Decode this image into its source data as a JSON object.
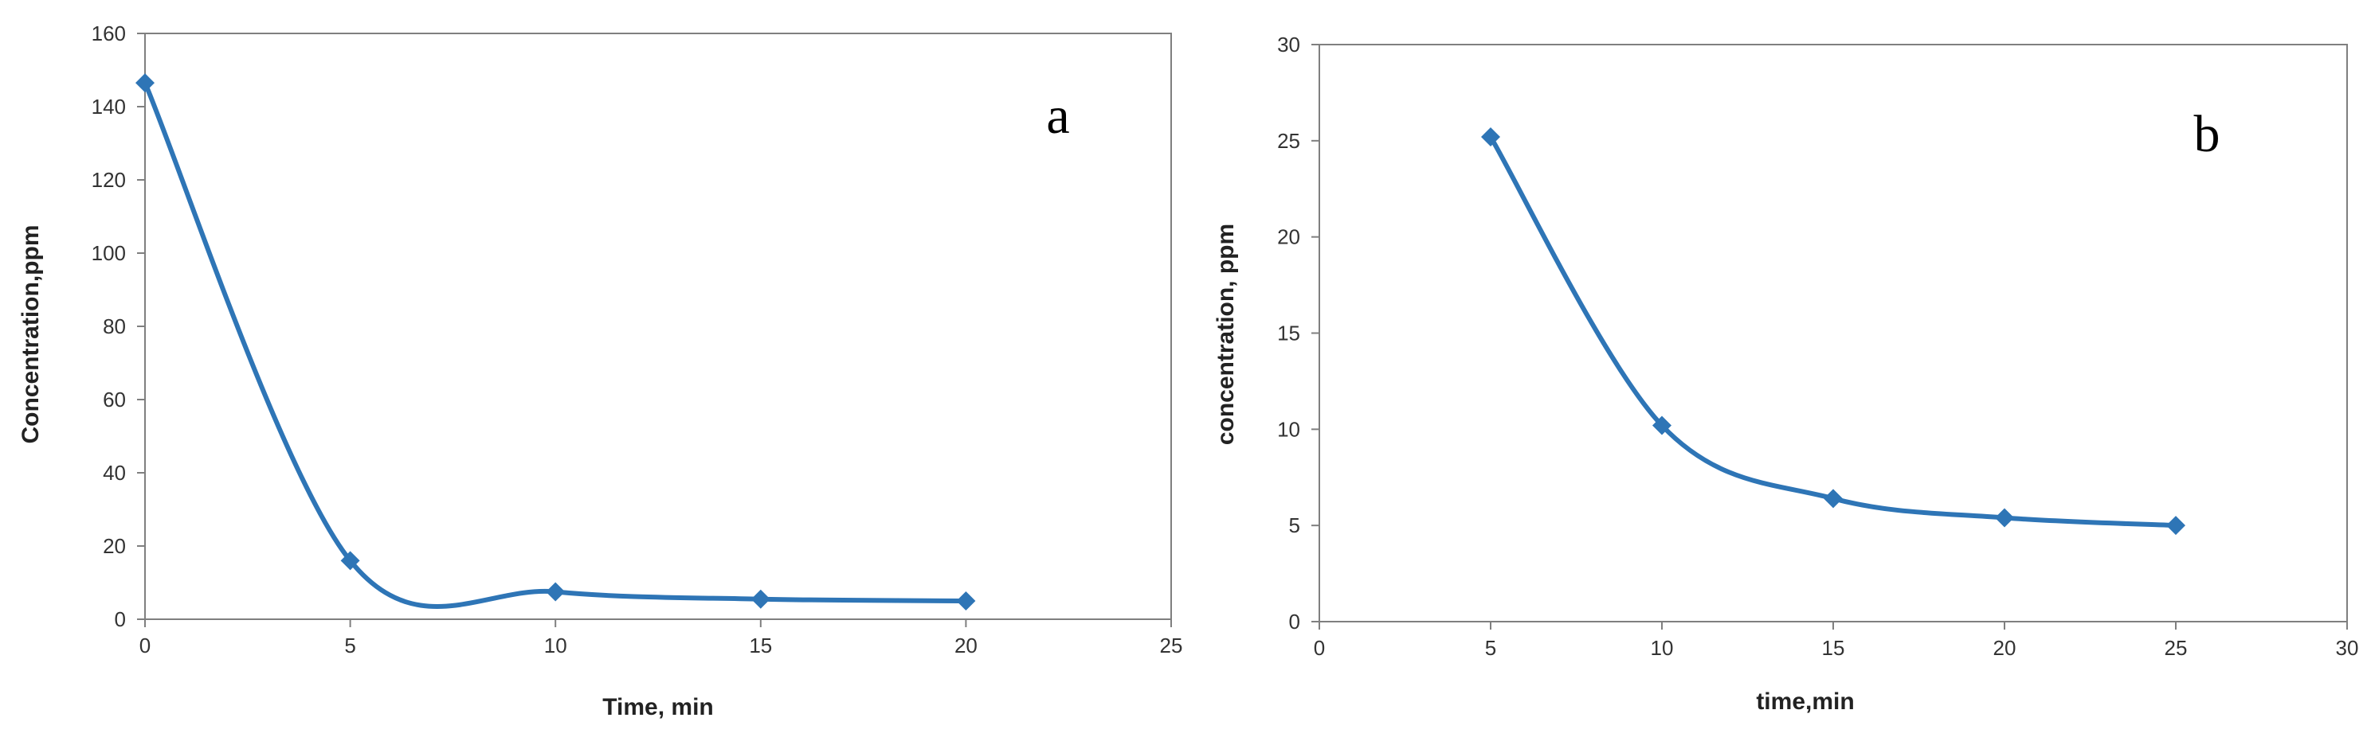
{
  "chart_data": [
    {
      "type": "line",
      "panel_label": "a",
      "xlabel": "Time, min",
      "ylabel": "Concentration,ppm",
      "xlim": [
        0,
        25
      ],
      "ylim": [
        0,
        160
      ],
      "x_ticks": [
        "0",
        "5",
        "10",
        "15",
        "20",
        "25"
      ],
      "y_ticks": [
        "0",
        "20",
        "40",
        "60",
        "80",
        "100",
        "120",
        "140",
        "160"
      ],
      "grid": false,
      "smooth": true,
      "marker": "diamond",
      "series": [
        {
          "x": [
            0,
            5,
            10,
            15,
            20
          ],
          "values": [
            146.5,
            16,
            7.5,
            5.5,
            5
          ]
        }
      ],
      "color": "#2e75b6"
    },
    {
      "type": "line",
      "panel_label": "b",
      "xlabel": "time,min",
      "ylabel": "concentration, ppm",
      "xlim": [
        0,
        30
      ],
      "ylim": [
        0,
        30
      ],
      "x_ticks": [
        "0",
        "5",
        "10",
        "15",
        "20",
        "25",
        "30"
      ],
      "y_ticks": [
        "0",
        "5",
        "10",
        "15",
        "20",
        "25",
        "30"
      ],
      "grid": false,
      "smooth": true,
      "marker": "diamond",
      "series": [
        {
          "x": [
            5,
            10,
            15,
            20,
            25
          ],
          "values": [
            25.2,
            10.2,
            6.4,
            5.4,
            5.0
          ]
        }
      ],
      "color": "#2e75b6"
    }
  ]
}
